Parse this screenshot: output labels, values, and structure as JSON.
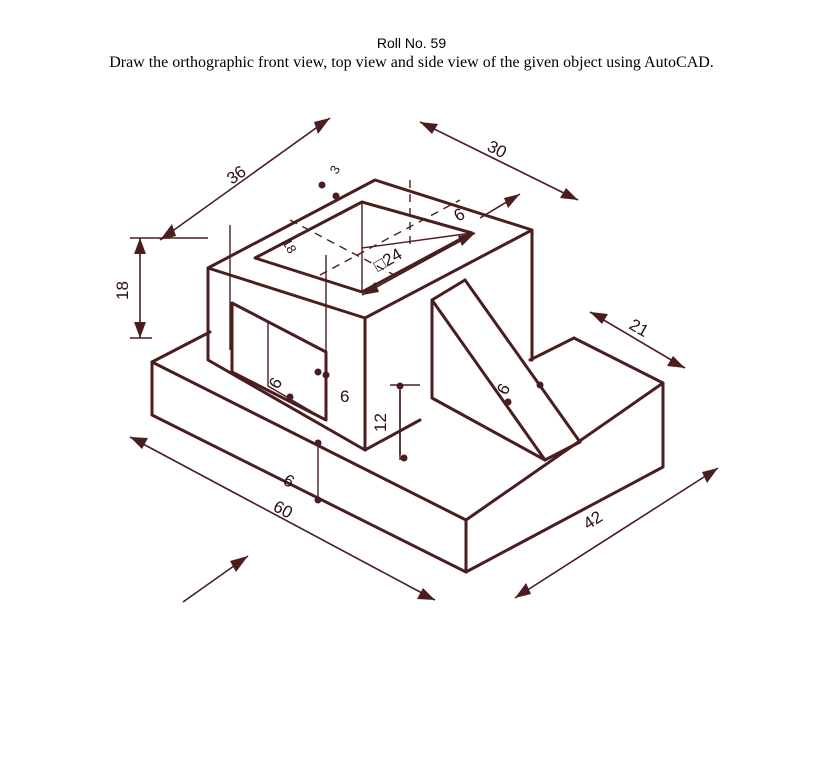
{
  "header": {
    "roll_no": "Roll No. 59",
    "instruction": "Draw the orthographic front view, top view and side view of the given object using AutoCAD."
  },
  "dimensions": {
    "d36": "36",
    "d30": "30",
    "d6_top": "6",
    "d18_height": "18",
    "d18_inner": "18",
    "d3": "3",
    "d24": "□24",
    "d21": "21",
    "d6_window_h": "6",
    "d6_window_v": "6",
    "d12": "12",
    "d6_rib": "6",
    "d9": "9",
    "d60": "60",
    "d42": "42"
  },
  "colors": {
    "ink": "#4a1e1e"
  }
}
